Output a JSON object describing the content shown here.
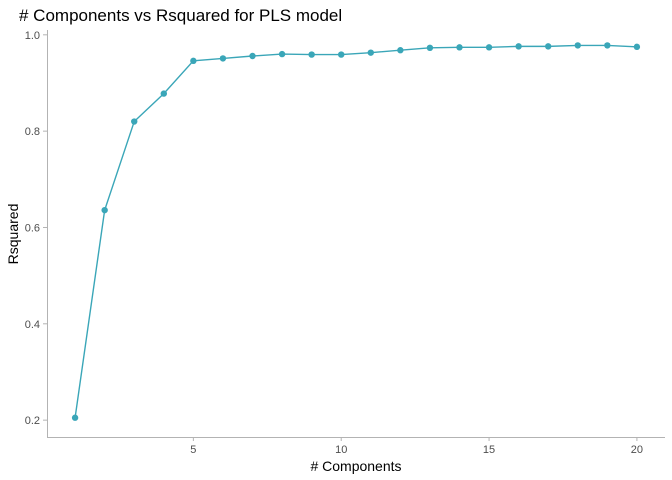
{
  "chart_data": {
    "type": "line",
    "title": "# Components vs Rsquared for PLS model",
    "xlabel": "# Components",
    "ylabel": "Rsquared",
    "xlim": [
      0.05,
      20.95
    ],
    "ylim": [
      0.165,
      1.01
    ],
    "x_ticks": [
      5,
      10,
      15,
      20
    ],
    "y_ticks": [
      0.2,
      0.4,
      0.6,
      0.8,
      1.0
    ],
    "x_tick_labels": [
      "5",
      "10",
      "15",
      "20"
    ],
    "y_tick_labels": [
      "0.2",
      "0.4",
      "0.6",
      "0.8",
      "1.0"
    ],
    "grid": false,
    "legend": "none",
    "color": "#3aa6b8",
    "series": [
      {
        "x": [
          1,
          2,
          3,
          4,
          5,
          6,
          7,
          8,
          9,
          10,
          11,
          12,
          13,
          14,
          15,
          16,
          17,
          18,
          19,
          20
        ],
        "values": [
          0.205,
          0.636,
          0.82,
          0.878,
          0.946,
          0.951,
          0.956,
          0.96,
          0.959,
          0.959,
          0.963,
          0.968,
          0.973,
          0.974,
          0.974,
          0.976,
          0.976,
          0.978,
          0.978,
          0.975
        ]
      }
    ]
  }
}
